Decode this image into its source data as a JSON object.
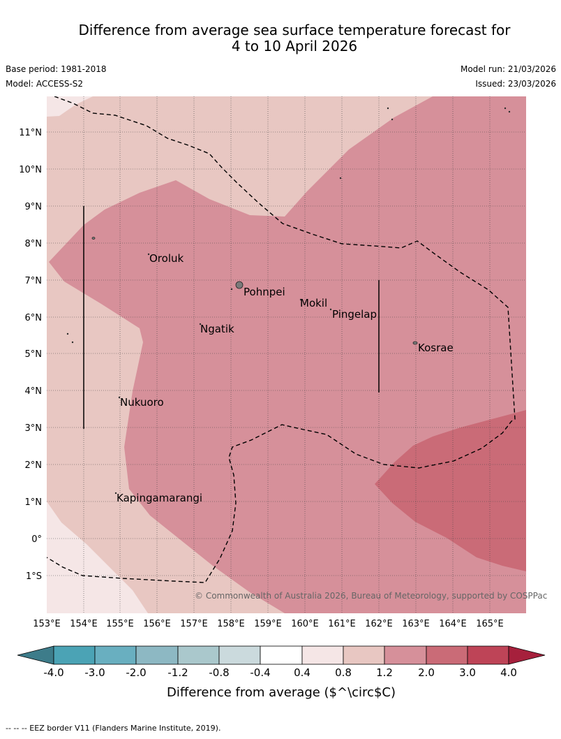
{
  "header": {
    "title_line1": "Difference from average sea surface temperature forecast for",
    "title_line2": "4 to 10 April 2026",
    "base_period": "Base period: 1981-2018",
    "model": "Model: ACCESS-S2",
    "model_run": "Model run: 21/03/2026",
    "issued": "Issued: 23/03/2026"
  },
  "map": {
    "lon_labels": [
      "153°E",
      "154°E",
      "155°E",
      "156°E",
      "157°E",
      "158°E",
      "159°E",
      "160°E",
      "161°E",
      "162°E",
      "163°E",
      "164°E",
      "165°E"
    ],
    "lat_labels": [
      "11°N",
      "10°N",
      "9°N",
      "8°N",
      "7°N",
      "6°N",
      "5°N",
      "4°N",
      "3°N",
      "2°N",
      "1°N",
      "0°",
      "1°S"
    ],
    "places": [
      "Oroluk",
      "Pohnpei",
      "Mokil",
      "Pingelap",
      "Ngatik",
      "Kosrae",
      "Nukuoro",
      "Kapingamarangi"
    ],
    "copyright": "© Commonwealth of Australia 2026, Bureau of Meteorology, supported by COSPPac"
  },
  "colorbar": {
    "ticks": [
      "-4.0",
      "-3.0",
      "-2.0",
      "-1.2",
      "-0.8",
      "-0.4",
      "0.4",
      "0.8",
      "1.2",
      "2.0",
      "3.0",
      "4.0"
    ],
    "colors": [
      "#3d7c8a",
      "#4ba3b5",
      "#69afc0",
      "#8db8c3",
      "#aac8cc",
      "#cbdadd",
      "#ffffff",
      "#f5e6e6",
      "#e8c7c2",
      "#d6909a",
      "#ca6b77",
      "#be4457",
      "#a6203c"
    ],
    "label": "Difference from average ($^\\circ$C)"
  },
  "footer": {
    "eez_note": "--  --  -- EEZ border V11 (Flanders Marine Institute, 2019)."
  }
}
